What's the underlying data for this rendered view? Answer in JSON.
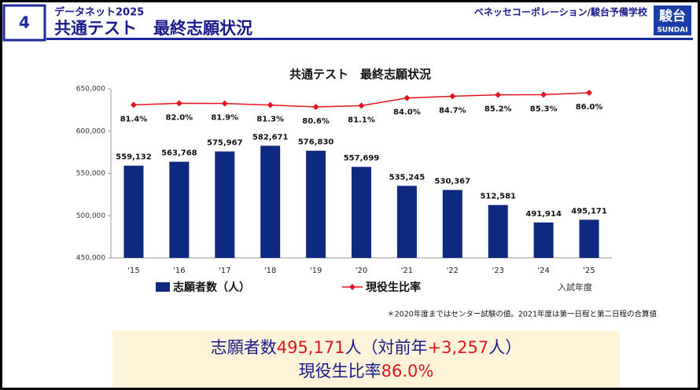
{
  "header": {
    "number": "4",
    "subtitle": "データネット2025",
    "title": "共通テスト　最終志願状況",
    "publisher": "ベネッセコーポレーション/駿台予備学校",
    "logo_main": "駿台",
    "logo_sub": "SUNDAI"
  },
  "chart_data": {
    "type": "bar",
    "title": "共通テスト　最終志願状況",
    "categories": [
      "'15",
      "'16",
      "'17",
      "'18",
      "'19",
      "'20",
      "'21",
      "'22",
      "'23",
      "'24",
      "'25"
    ],
    "x_label": "入試年度",
    "series": [
      {
        "name": "志願者数（人）",
        "color": "#0d2a80",
        "values": [
          559132,
          563768,
          575967,
          582671,
          576830,
          557699,
          535245,
          530367,
          512581,
          491914,
          495171
        ],
        "value_labels": [
          "559,132",
          "563,768",
          "575,967",
          "582,671",
          "576,830",
          "557,699",
          "535,245",
          "530,367",
          "512,581",
          "491,914",
          "495,171"
        ]
      },
      {
        "name": "現役生比率",
        "type": "line",
        "axis": "y2",
        "color": "#e0141e",
        "values": [
          81.4,
          82.0,
          81.9,
          81.3,
          80.6,
          81.1,
          84.0,
          84.7,
          85.2,
          85.3,
          86.0
        ],
        "value_labels": [
          "81.4%",
          "82.0%",
          "81.9%",
          "81.3%",
          "80.6%",
          "81.1%",
          "84.0%",
          "84.7%",
          "85.2%",
          "85.3%",
          "86.0%"
        ]
      }
    ],
    "ylim": [
      450000,
      650000
    ],
    "yticks": [
      {
        "value": 450000,
        "label": "450,000"
      },
      {
        "value": 500000,
        "label": "500,000"
      },
      {
        "value": 550000,
        "label": "550,000"
      },
      {
        "value": 600000,
        "label": "600,000"
      },
      {
        "value": 650000,
        "label": "650,000"
      }
    ],
    "y2lim": [
      23,
      87.5
    ],
    "grid": false,
    "legend": "bottom"
  },
  "footnote": "＊2020年度まではセンター試験の値。2021年度は第一日程と第二日程の合算値",
  "summary": {
    "line1": [
      {
        "text": "志願者数",
        "color": "#1a1a8c"
      },
      {
        "text": "495,171",
        "color": "#e0141e"
      },
      {
        "text": "人（対前年",
        "color": "#1a1a8c"
      },
      {
        "text": "+3,257",
        "color": "#e0141e"
      },
      {
        "text": "人）",
        "color": "#1a1a8c"
      }
    ],
    "line2": [
      {
        "text": "現役生比率",
        "color": "#1a1a8c"
      },
      {
        "text": "86.0%",
        "color": "#e0141e"
      }
    ]
  }
}
